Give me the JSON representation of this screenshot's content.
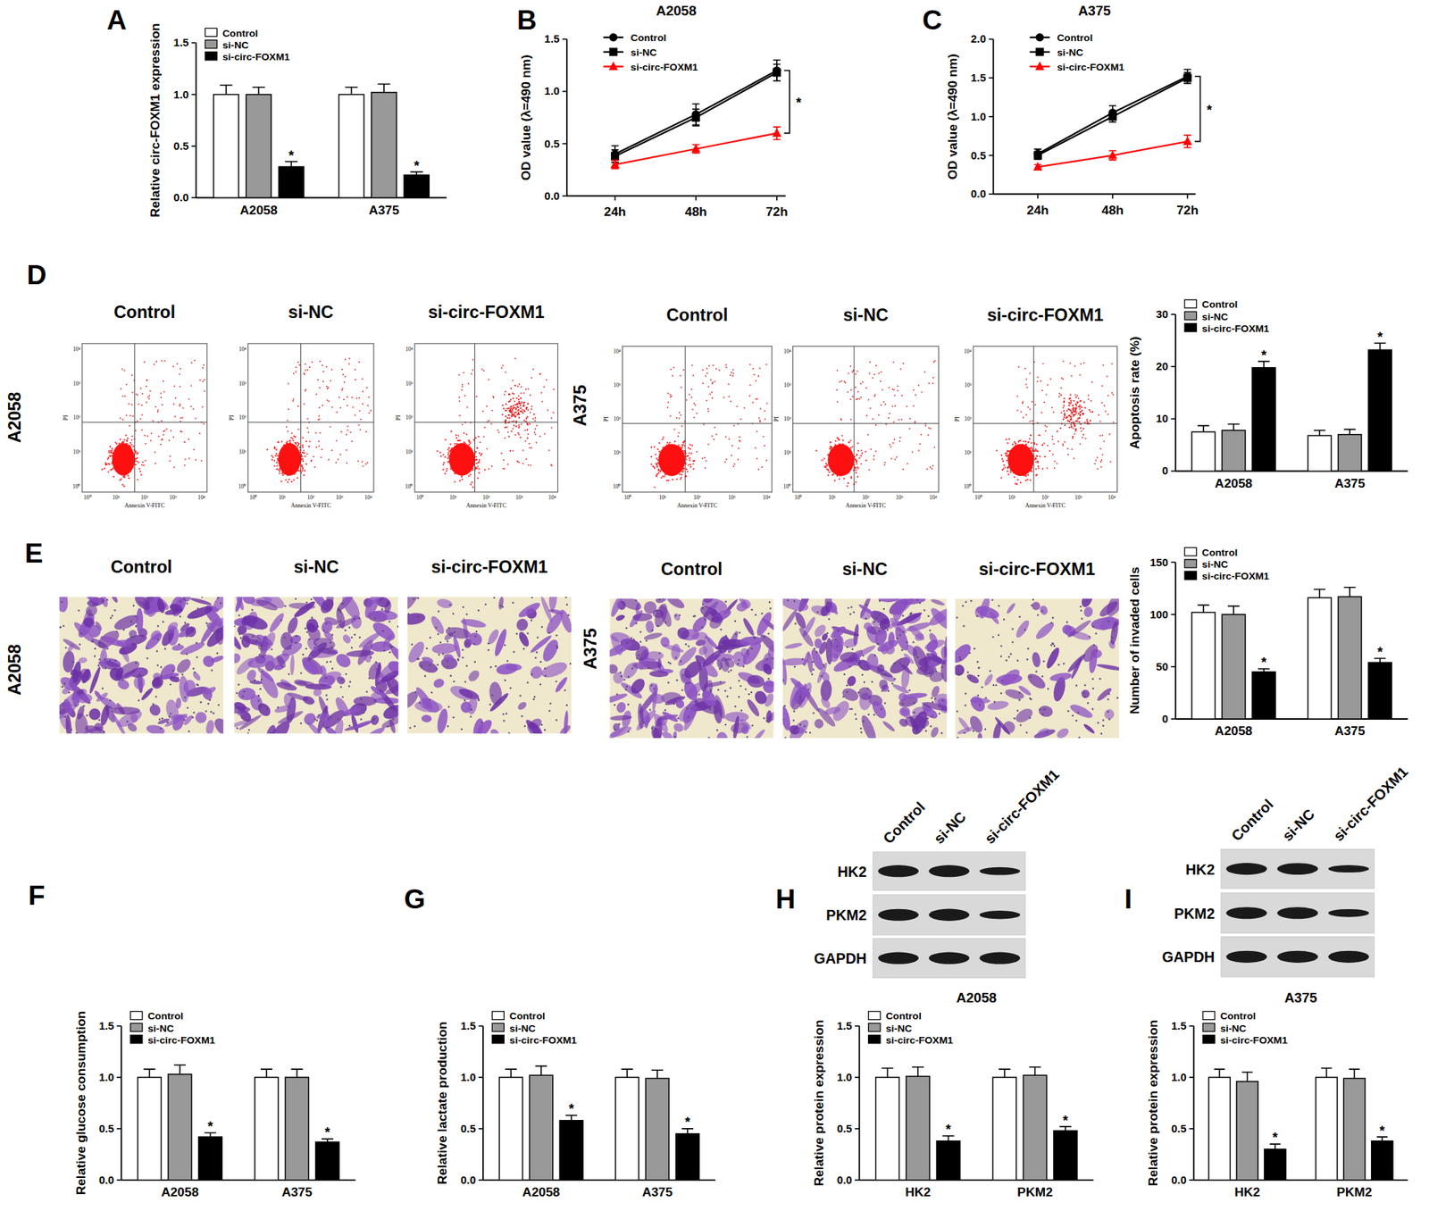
{
  "panel_labels": [
    "A",
    "B",
    "C",
    "D",
    "E",
    "F",
    "G",
    "H",
    "I"
  ],
  "chart_data": [
    {
      "type": "bar",
      "y_label": "Relative circ-FOXM1 expression",
      "categories": [
        "A2058",
        "A375"
      ],
      "series": [
        {
          "name": "Control",
          "color": "#ffffff",
          "values": [
            1.0,
            1.0
          ],
          "errors": [
            0.09,
            0.07
          ]
        },
        {
          "name": "si-NC",
          "color": "#999999",
          "values": [
            1.0,
            1.02
          ],
          "errors": [
            0.07,
            0.08
          ]
        },
        {
          "name": "si-circ-FOXM1",
          "color": "#000000",
          "values": [
            0.3,
            0.22
          ],
          "errors": [
            0.05,
            0.03
          ],
          "significance": [
            "*",
            "*"
          ]
        }
      ],
      "ylim": [
        0,
        1.5
      ],
      "yticks": [
        {
          "value": 0,
          "label": "0.0"
        },
        {
          "value": 0.5,
          "label": "0.5"
        },
        {
          "value": 1,
          "label": "1.0"
        },
        {
          "value": 1.5,
          "label": "1.5"
        }
      ],
      "legend": "upper left"
    },
    {
      "type": "line",
      "title": "A2058",
      "y_label": "OD value (λ=490 nm)",
      "categories": [
        "24h",
        "48h",
        "72h"
      ],
      "series": [
        {
          "name": "Control",
          "color": "#000000",
          "marker": "circle",
          "values": [
            0.4,
            0.78,
            1.2
          ],
          "errors": [
            0.08,
            0.1,
            0.1
          ]
        },
        {
          "name": "si-NC",
          "color": "#000000",
          "marker": "square",
          "values": [
            0.38,
            0.75,
            1.18
          ],
          "errors": [
            0.06,
            0.08,
            0.08
          ]
        },
        {
          "name": "si-circ-FOXM1",
          "color": "#ff0000",
          "marker": "triangle",
          "values": [
            0.3,
            0.45,
            0.6
          ],
          "errors": [
            0.04,
            0.04,
            0.06
          ]
        }
      ],
      "ylim": [
        0,
        1.5
      ],
      "yticks": [
        {
          "value": 0,
          "label": "0.0"
        },
        {
          "value": 0.5,
          "label": "0.5"
        },
        {
          "value": 1,
          "label": "1.0"
        },
        {
          "value": 1.5,
          "label": "1.5"
        }
      ],
      "annotations": [
        {
          "text": "*",
          "category": "72h"
        }
      ],
      "legend": "upper left"
    },
    {
      "type": "line",
      "title": "A375",
      "y_label": "OD value (λ=490 nm)",
      "categories": [
        "24h",
        "48h",
        "72h"
      ],
      "series": [
        {
          "name": "Control",
          "color": "#000000",
          "marker": "circle",
          "values": [
            0.52,
            1.05,
            1.52
          ],
          "errors": [
            0.06,
            0.09,
            0.09
          ]
        },
        {
          "name": "si-NC",
          "color": "#000000",
          "marker": "square",
          "values": [
            0.5,
            1.0,
            1.5
          ],
          "errors": [
            0.05,
            0.07,
            0.07
          ]
        },
        {
          "name": "si-circ-FOXM1",
          "color": "#ff0000",
          "marker": "triangle",
          "values": [
            0.35,
            0.5,
            0.68
          ],
          "errors": [
            0.03,
            0.06,
            0.08
          ]
        }
      ],
      "ylim": [
        0,
        2.0
      ],
      "yticks": [
        {
          "value": 0,
          "label": "0.0"
        },
        {
          "value": 0.5,
          "label": "0.5"
        },
        {
          "value": 1,
          "label": "1.0"
        },
        {
          "value": 1.5,
          "label": "1.5"
        },
        {
          "value": 2,
          "label": "2.0"
        }
      ],
      "annotations": [
        {
          "text": "*",
          "category": "72h"
        }
      ],
      "legend": "upper left"
    },
    {
      "type": "bar",
      "y_label": "Apoptosis rate (%)",
      "categories": [
        "A2058",
        "A375"
      ],
      "series": [
        {
          "name": "Control",
          "color": "#ffffff",
          "values": [
            7.5,
            6.8
          ],
          "errors": [
            1.2,
            1.0
          ]
        },
        {
          "name": "si-NC",
          "color": "#999999",
          "values": [
            7.8,
            7.0
          ],
          "errors": [
            1.2,
            1.0
          ]
        },
        {
          "name": "si-circ-FOXM1",
          "color": "#000000",
          "values": [
            19.8,
            23.2
          ],
          "errors": [
            1.2,
            1.3
          ],
          "significance": [
            "*",
            "*"
          ]
        }
      ],
      "ylim": [
        0,
        30
      ],
      "yticks": [
        0,
        10,
        20,
        30
      ],
      "legend": "upper left"
    },
    {
      "type": "bar",
      "y_label": "Number of invaded cells",
      "categories": [
        "A2058",
        "A375"
      ],
      "series": [
        {
          "name": "Control",
          "color": "#ffffff",
          "values": [
            102,
            116
          ],
          "errors": [
            7,
            8
          ]
        },
        {
          "name": "si-NC",
          "color": "#999999",
          "values": [
            100,
            117
          ],
          "errors": [
            8,
            9
          ]
        },
        {
          "name": "si-circ-FOXM1",
          "color": "#000000",
          "values": [
            45,
            54
          ],
          "errors": [
            3,
            4
          ],
          "significance": [
            "*",
            "*"
          ]
        }
      ],
      "ylim": [
        0,
        150
      ],
      "yticks": [
        0,
        50,
        100,
        150
      ],
      "legend": "upper left"
    },
    {
      "type": "bar",
      "y_label": "Relative glucose consumption",
      "categories": [
        "A2058",
        "A375"
      ],
      "series": [
        {
          "name": "Control",
          "color": "#ffffff",
          "values": [
            1.0,
            1.0
          ],
          "errors": [
            0.08,
            0.08
          ]
        },
        {
          "name": "si-NC",
          "color": "#999999",
          "values": [
            1.03,
            1.0
          ],
          "errors": [
            0.09,
            0.08
          ]
        },
        {
          "name": "si-circ-FOXM1",
          "color": "#000000",
          "values": [
            0.42,
            0.37
          ],
          "errors": [
            0.04,
            0.03
          ],
          "significance": [
            "*",
            "*"
          ]
        }
      ],
      "ylim": [
        0,
        1.5
      ],
      "yticks": [
        {
          "value": 0,
          "label": "0.0"
        },
        {
          "value": 0.5,
          "label": "0.5"
        },
        {
          "value": 1,
          "label": "1.0"
        },
        {
          "value": 1.5,
          "label": "1.5"
        }
      ],
      "legend": "upper left"
    },
    {
      "type": "bar",
      "y_label": "Relative lactate production",
      "categories": [
        "A2058",
        "A375"
      ],
      "series": [
        {
          "name": "Control",
          "color": "#ffffff",
          "values": [
            1.0,
            1.0
          ],
          "errors": [
            0.08,
            0.08
          ]
        },
        {
          "name": "si-NC",
          "color": "#999999",
          "values": [
            1.02,
            0.99
          ],
          "errors": [
            0.09,
            0.08
          ]
        },
        {
          "name": "si-circ-FOXM1",
          "color": "#000000",
          "values": [
            0.58,
            0.45
          ],
          "errors": [
            0.05,
            0.05
          ],
          "significance": [
            "*",
            "*"
          ]
        }
      ],
      "ylim": [
        0,
        1.5
      ],
      "yticks": [
        {
          "value": 0,
          "label": "0.0"
        },
        {
          "value": 0.5,
          "label": "0.5"
        },
        {
          "value": 1,
          "label": "1.0"
        },
        {
          "value": 1.5,
          "label": "1.5"
        }
      ],
      "legend": "upper left"
    },
    {
      "type": "bar",
      "title": "A2058",
      "y_label": "Relative protein expression",
      "categories": [
        "HK2",
        "PKM2"
      ],
      "series": [
        {
          "name": "Control",
          "color": "#ffffff",
          "values": [
            1.0,
            1.0
          ],
          "errors": [
            0.09,
            0.08
          ]
        },
        {
          "name": "si-NC",
          "color": "#999999",
          "values": [
            1.01,
            1.02
          ],
          "errors": [
            0.09,
            0.08
          ]
        },
        {
          "name": "si-circ-FOXM1",
          "color": "#000000",
          "values": [
            0.38,
            0.48
          ],
          "errors": [
            0.05,
            0.04
          ],
          "significance": [
            "*",
            "*"
          ]
        }
      ],
      "ylim": [
        0,
        1.5
      ],
      "yticks": [
        {
          "value": 0,
          "label": "0.0"
        },
        {
          "value": 0.5,
          "label": "0.5"
        },
        {
          "value": 1,
          "label": "1.0"
        },
        {
          "value": 1.5,
          "label": "1.5"
        }
      ],
      "legend": "upper left"
    },
    {
      "type": "bar",
      "title": "A375",
      "y_label": "Relative protein expression",
      "categories": [
        "HK2",
        "PKM2"
      ],
      "series": [
        {
          "name": "Control",
          "color": "#ffffff",
          "values": [
            1.0,
            1.0
          ],
          "errors": [
            0.08,
            0.09
          ]
        },
        {
          "name": "si-NC",
          "color": "#999999",
          "values": [
            0.96,
            0.99
          ],
          "errors": [
            0.09,
            0.09
          ]
        },
        {
          "name": "si-circ-FOXM1",
          "color": "#000000",
          "values": [
            0.3,
            0.38
          ],
          "errors": [
            0.05,
            0.04
          ],
          "significance": [
            "*",
            "*"
          ]
        }
      ],
      "ylim": [
        0,
        1.5
      ],
      "yticks": [
        {
          "value": 0,
          "label": "0.0"
        },
        {
          "value": 0.5,
          "label": "0.5"
        },
        {
          "value": 1,
          "label": "1.0"
        },
        {
          "value": 1.5,
          "label": "1.5"
        }
      ],
      "legend": "upper left"
    }
  ],
  "flow_cytometry": {
    "rows": [
      "A2058",
      "A375"
    ],
    "columns": [
      "Control",
      "si-NC",
      "si-circ-FOXM1"
    ],
    "x_label": "Annexin V-FITC",
    "y_label": "PI",
    "ticks": [
      "10⁰",
      "10¹",
      "10²",
      "10³",
      "10⁴"
    ]
  },
  "invasion_images": {
    "rows": [
      "A2058",
      "A375"
    ],
    "columns": [
      "Control",
      "si-NC",
      "si-circ-FOXM1"
    ]
  },
  "blots": [
    {
      "lanes": [
        "Control",
        "si-NC",
        "si-circ-FOXM1"
      ],
      "rows": [
        "HK2",
        "PKM2",
        "GAPDH"
      ]
    },
    {
      "lanes": [
        "Control",
        "si-NC",
        "si-circ-FOXM1"
      ],
      "rows": [
        "HK2",
        "PKM2",
        "GAPDH"
      ]
    }
  ]
}
